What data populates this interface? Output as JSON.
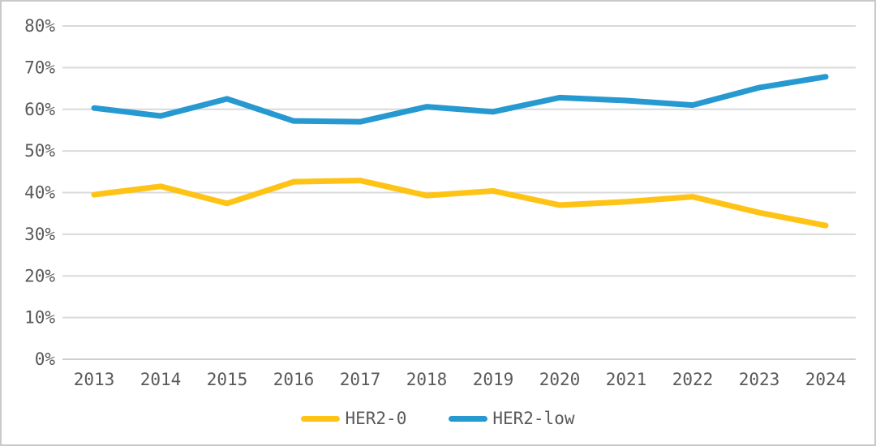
{
  "chart_data": {
    "type": "line",
    "title": "",
    "xlabel": "",
    "ylabel": "",
    "categories": [
      "2013",
      "2014",
      "2015",
      "2016",
      "2017",
      "2018",
      "2019",
      "2020",
      "2021",
      "2022",
      "2023",
      "2024"
    ],
    "series": [
      {
        "name": "HER2-0",
        "color": "#FEC315",
        "values": [
          39.5,
          41.5,
          37.4,
          42.6,
          42.9,
          39.3,
          40.4,
          37.0,
          37.8,
          39.0,
          35.2,
          32.1
        ]
      },
      {
        "name": "HER2-low",
        "color": "#2699D1",
        "values": [
          60.3,
          58.4,
          62.5,
          57.2,
          57.0,
          60.6,
          59.4,
          62.8,
          62.1,
          61.0,
          65.2,
          67.8
        ]
      }
    ],
    "ylim": [
      0,
      80
    ],
    "ytick_step": 10,
    "ytick_labels": [
      "0%",
      "10%",
      "20%",
      "30%",
      "40%",
      "50%",
      "60%",
      "70%",
      "80%"
    ],
    "grid": true,
    "legend_position": "bottom-center"
  },
  "style": {
    "axis_label_color": "#595959",
    "gridline_color": "#d9d9d9",
    "axis_line_color": "#cfcfcf",
    "background_color": "#ffffff",
    "border_color": "#c9c9c9"
  }
}
